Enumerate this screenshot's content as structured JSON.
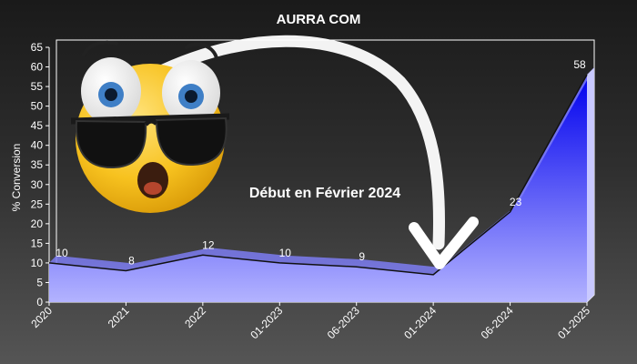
{
  "chart_data": {
    "type": "area",
    "title": "AURRA COM",
    "xlabel": "",
    "ylabel": "% Conversion",
    "categories": [
      "2020",
      "2021",
      "2022",
      "01-2023",
      "06-2023",
      "01-2024",
      "06-2024",
      "01-2025"
    ],
    "series": [
      {
        "values": [
          10,
          8,
          12,
          10,
          9,
          7,
          23,
          58
        ]
      }
    ],
    "ylim": [
      0,
      65
    ],
    "yticks": [
      0,
      5,
      10,
      15,
      20,
      25,
      30,
      35,
      40,
      45,
      50,
      55,
      60,
      65
    ],
    "grid": false,
    "legend": "none",
    "annotation": "Début en Février 2024",
    "colors": {
      "area_top": "#0000ee",
      "area_bottom": "#b3b3ff",
      "line": "#111111",
      "text": "#ffffff"
    },
    "decoration": {
      "emoji": "shocked-emoji-with-sunglasses",
      "arrow": "curved-white-arrow"
    }
  }
}
